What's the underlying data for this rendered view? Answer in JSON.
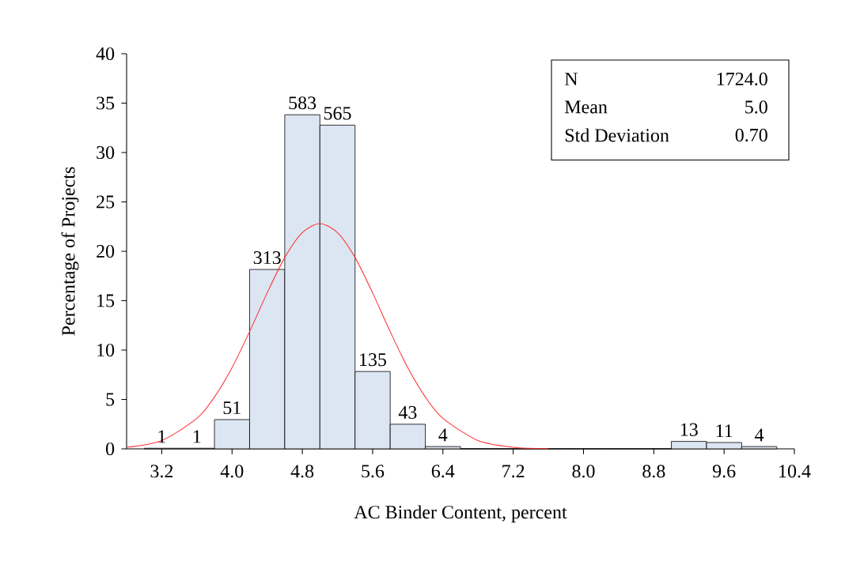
{
  "chart_data": {
    "type": "histogram",
    "xlabel": "AC Binder Content, percent",
    "ylabel": "Percentage of Projects",
    "xlim": [
      2.8,
      10.4
    ],
    "ylim": [
      0,
      40
    ],
    "xticks": [
      3.2,
      {
        "value": 4.0,
        "label": "4.0"
      },
      4.8,
      5.6,
      6.4,
      7.2,
      {
        "value": 8.0,
        "label": "8.0"
      },
      8.8,
      9.6,
      10.4
    ],
    "yticks": [
      0,
      5,
      10,
      15,
      20,
      25,
      30,
      35,
      40
    ],
    "annotations": [
      "N",
      "1724.0",
      "Mean",
      "5.0",
      "Std Deviation",
      "0.70",
      {
        "text": "1",
        "x": 3.2,
        "y": 0.06
      },
      {
        "text": "1",
        "x": 3.6,
        "y": 0.06
      },
      {
        "text": "51",
        "x": 4.0,
        "y": 2.96
      },
      {
        "text": "313",
        "x": 4.4,
        "y": 18.16
      },
      {
        "text": "583",
        "x": 4.8,
        "y": 33.82
      },
      {
        "text": "565",
        "x": 5.2,
        "y": 32.77
      },
      {
        "text": "135",
        "x": 5.6,
        "y": 7.83
      },
      {
        "text": "43",
        "x": 6.0,
        "y": 2.49
      },
      {
        "text": "4",
        "x": 6.4,
        "y": 0.23
      },
      {
        "text": "13",
        "x": 9.2,
        "y": 0.75
      },
      {
        "text": "11",
        "x": 9.6,
        "y": 0.64
      },
      {
        "text": "4",
        "x": 10.0,
        "y": 0.23
      }
    ],
    "series": [
      {
        "type": "histogram",
        "color": "#dce6f2",
        "bins": [
          3.0,
          3.4,
          3.8,
          4.2,
          4.6,
          5.0,
          5.4,
          5.8,
          6.2,
          6.6,
          7.0,
          7.4,
          7.8,
          8.2,
          8.6,
          9.0,
          9.4,
          9.8,
          10.2
        ],
        "values": [
          0.06,
          0.06,
          2.96,
          18.16,
          33.82,
          32.77,
          7.83,
          2.49,
          0.23,
          0,
          0,
          0,
          0,
          0,
          0,
          0.75,
          0.64,
          0.23
        ]
      },
      {
        "type": "line",
        "color": "#ff3333",
        "x": [
          2.8,
          3.2,
          3.6,
          3.8,
          4.0,
          4.2,
          4.4,
          4.6,
          4.8,
          5.0,
          5.2,
          5.4,
          5.6,
          5.8,
          6.0,
          6.2,
          6.4,
          6.8,
          7.2,
          7.6
        ],
        "values": [
          0.16,
          0.84,
          3.09,
          5.25,
          8.22,
          11.87,
          15.79,
          19.37,
          21.89,
          22.8,
          21.89,
          19.37,
          15.79,
          11.87,
          8.22,
          5.25,
          3.09,
          0.84,
          0.16,
          0.02
        ]
      }
    ]
  }
}
